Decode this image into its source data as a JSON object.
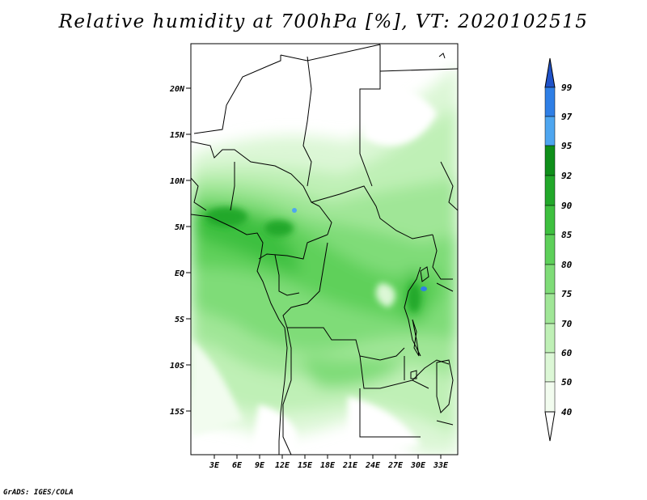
{
  "title": "Relative humidity at 700hPa [%], VT: 2020102515",
  "credit": "GrADS: IGES/COLA",
  "axes": {
    "lat_labels": [
      "20N",
      "15N",
      "10N",
      "5N",
      "EQ",
      "5S",
      "10S",
      "15S"
    ],
    "lon_labels": [
      "3E",
      "6E",
      "9E",
      "12E",
      "15E",
      "18E",
      "21E",
      "24E",
      "27E",
      "30E",
      "33E"
    ]
  },
  "colorbar": {
    "levels": [
      "99",
      "97",
      "95",
      "92",
      "90",
      "85",
      "80",
      "75",
      "70",
      "60",
      "50",
      "40"
    ],
    "colors": [
      "#1f52c9",
      "#2f7fe6",
      "#4ea6f0",
      "#0f8f1a",
      "#22a82a",
      "#3ec03f",
      "#5ed05a",
      "#7fdc78",
      "#a0e697",
      "#bff0b6",
      "#dcf7d6",
      "#f2fcef",
      "#ffffff"
    ]
  }
}
